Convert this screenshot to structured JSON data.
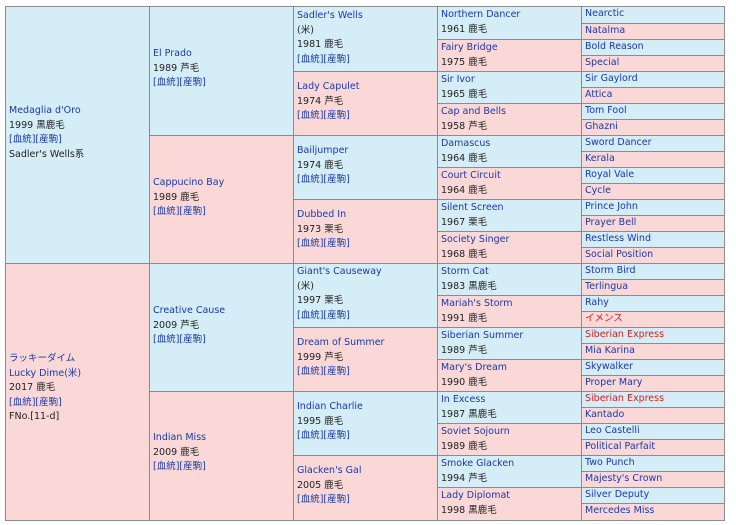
{
  "pedigree": {
    "sire": {
      "name": "Medaglia d'Oro",
      "year_color": "1999 黒鹿毛",
      "links": "[血統][産駒]",
      "note": "Sadler's Wells系",
      "sire": {
        "name": "El Prado",
        "year_color": "1989 芦毛",
        "links": "[血統][産駒]",
        "sire": {
          "name": "Sadler's Wells",
          "origin": "(米)",
          "year_color": "1981 鹿毛",
          "links": "[血統][産駒]",
          "sire": {
            "name": "Northern Dancer",
            "year_color": "1961 鹿毛",
            "sire": "Nearctic",
            "dam": "Natalma"
          },
          "dam": {
            "name": "Fairy Bridge",
            "year_color": "1975 鹿毛",
            "sire": "Bold Reason",
            "dam": "Special"
          }
        },
        "dam": {
          "name": "Lady Capulet",
          "year_color": "1974 芦毛",
          "links": "[血統][産駒]",
          "sire": {
            "name": "Sir Ivor",
            "year_color": "1965 鹿毛",
            "sire": "Sir Gaylord",
            "dam": "Attica"
          },
          "dam": {
            "name": "Cap and Bells",
            "year_color": "1958 芦毛",
            "sire": "Tom Fool",
            "dam": "Ghazni"
          }
        }
      },
      "dam": {
        "name": "Cappucino Bay",
        "year_color": "1989 鹿毛",
        "links": "[血統][産駒]",
        "sire": {
          "name": "Bailjumper",
          "year_color": "1974 鹿毛",
          "links": "[血統][産駒]",
          "sire": {
            "name": "Damascus",
            "year_color": "1964 鹿毛",
            "sire": "Sword Dancer",
            "dam": "Kerala"
          },
          "dam": {
            "name": "Court Circuit",
            "year_color": "1964 鹿毛",
            "sire": "Royal Vale",
            "dam": "Cycle"
          }
        },
        "dam": {
          "name": "Dubbed In",
          "year_color": "1973 栗毛",
          "links": "[血統][産駒]",
          "sire": {
            "name": "Silent Screen",
            "year_color": "1967 栗毛",
            "sire": "Prince John",
            "dam": "Prayer Bell"
          },
          "dam": {
            "name": "Society Singer",
            "year_color": "1968 鹿毛",
            "sire": "Restless Wind",
            "dam": "Social Position"
          }
        }
      }
    },
    "dam": {
      "name_jp": "ラッキーダイム",
      "name": "Lucky Dime(米)",
      "year_color": "2017 鹿毛",
      "links": "[血統][産駒]",
      "family": "FNo.[11-d]",
      "sire": {
        "name": "Creative Cause",
        "year_color": "2009 芦毛",
        "links": "[血統][産駒]",
        "sire": {
          "name": "Giant's Causeway",
          "origin": "(米)",
          "year_color": "1997 栗毛",
          "links": "[血統][産駒]",
          "sire": {
            "name": "Storm Cat",
            "year_color": "1983 黒鹿毛",
            "sire": "Storm Bird",
            "dam": "Terlingua"
          },
          "dam": {
            "name": "Mariah's Storm",
            "year_color": "1991 鹿毛",
            "sire": "Rahy",
            "dam": "イメンス"
          }
        },
        "dam": {
          "name": "Dream of Summer",
          "year_color": "1999 芦毛",
          "links": "[血統][産駒]",
          "sire": {
            "name": "Siberian Summer",
            "year_color": "1989 芦毛",
            "sire": "Siberian Express",
            "dam": "Mia Karina"
          },
          "dam": {
            "name": "Mary's Dream",
            "year_color": "1990 鹿毛",
            "sire": "Skywalker",
            "dam": "Proper Mary"
          }
        }
      },
      "dam": {
        "name": "Indian Miss",
        "year_color": "2009 鹿毛",
        "links": "[血統][産駒]",
        "sire": {
          "name": "Indian Charlie",
          "year_color": "1995 鹿毛",
          "links": "[血統][産駒]",
          "sire": {
            "name": "In Excess",
            "year_color": "1987 黒鹿毛",
            "sire": "Siberian Express",
            "dam": "Kantado"
          },
          "dam": {
            "name": "Soviet Sojourn",
            "year_color": "1989 鹿毛",
            "sire": "Leo Castelli",
            "dam": "Political Parfait"
          }
        },
        "dam": {
          "name": "Glacken's Gal",
          "year_color": "2005 鹿毛",
          "links": "[血統][産駒]",
          "sire": {
            "name": "Smoke Glacken",
            "year_color": "1994 芦毛",
            "sire": "Two Punch",
            "dam": "Majesty's Crown"
          },
          "dam": {
            "name": "Lady Diplomat",
            "year_color": "1998 黒鹿毛",
            "sire": "Silver Deputy",
            "dam": "Mercedes Miss"
          }
        }
      }
    }
  },
  "colors": {
    "male_bg": "#d5edf6",
    "female_bg": "#fad8d8",
    "link": "#1a3aa8",
    "duplicate": "#d42020",
    "border": "#8c8c8c"
  }
}
